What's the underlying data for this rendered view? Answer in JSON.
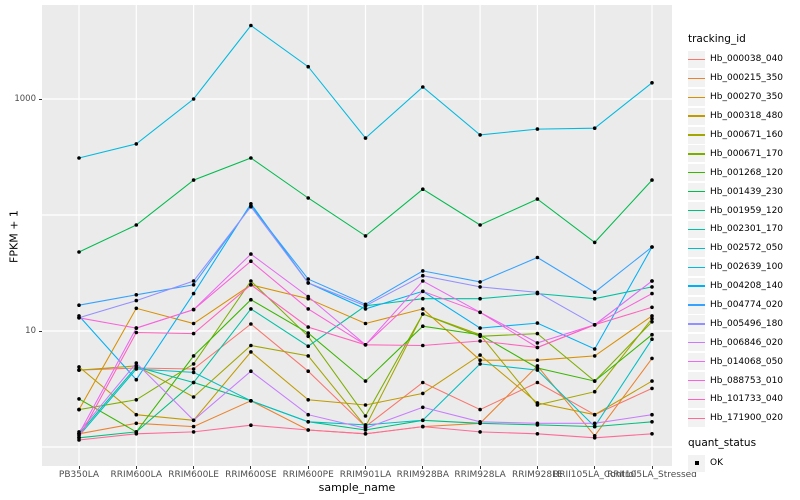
{
  "figure": {
    "background": "#FFFFFF"
  },
  "chart_data": {
    "type": "line",
    "title": "",
    "xlabel": "sample_name",
    "ylabel": "FPKM + 1",
    "y_scale": "log10",
    "ylim": [
      0.85,
      6000
    ],
    "legend_position": "right",
    "panel_background": "#EBEBEB",
    "gridline_color": "#FFFFFF",
    "tick_label_color": "#4D4D4D",
    "point_color": "#000000",
    "y_ticks": [
      {
        "value": 1000,
        "label": "1000"
      },
      {
        "value": 10,
        "label": "10"
      }
    ],
    "y_gridlines": [
      1,
      10,
      100,
      1000
    ],
    "categories": [
      "PB350LA",
      "RRIM600LA",
      "RRIM600LE",
      "RRIM600SE",
      "RRIM600PE",
      "RRIM901LA",
      "RRIM928BA",
      "RRIM928LA",
      "RRIM928LE",
      "RRII105LA_Control",
      "RRII105LA_Stressed"
    ],
    "legend_title": "tracking_id",
    "point_legend": {
      "title": "quant_status",
      "label": "OK"
    },
    "series": [
      {
        "name": "Hb_000038_040",
        "color": "#F8766D",
        "values": [
          4.6,
          4.8,
          4.7,
          11.5,
          4.5,
          1.5,
          3.6,
          2.1,
          3.6,
          1.9,
          3.2
        ]
      },
      {
        "name": "Hb_000215_350",
        "color": "#EA8331",
        "values": [
          1.3,
          1.6,
          1.5,
          2.5,
          1.4,
          1.3,
          1.5,
          1.6,
          5.0,
          1.25,
          5.8
        ]
      },
      {
        "name": "Hb_000270_350",
        "color": "#D89000",
        "values": [
          2.1,
          15.7,
          11.6,
          25,
          19,
          11.6,
          15.5,
          5.6,
          5.6,
          6.1,
          13.5
        ]
      },
      {
        "name": "Hb_000318_480",
        "color": "#C09B00",
        "values": [
          4.9,
          1.9,
          1.7,
          6.6,
          2.55,
          2.3,
          2.9,
          6.2,
          2.4,
          1.9,
          3.7
        ]
      },
      {
        "name": "Hb_000671_160",
        "color": "#A3A500",
        "values": [
          4.6,
          5.0,
          2.7,
          7.5,
          6.1,
          1.5,
          14,
          9.3,
          2.3,
          3.0,
          12.8
        ]
      },
      {
        "name": "Hb_000671_170",
        "color": "#7CAE00",
        "values": [
          2.1,
          2.55,
          5.2,
          27,
          9.0,
          1.85,
          14,
          9.0,
          9.5,
          3.7,
          12.0
        ]
      },
      {
        "name": "Hb_001268_120",
        "color": "#39B600",
        "values": [
          2.6,
          1.35,
          6.1,
          18.6,
          9.6,
          3.7,
          11,
          9.3,
          4.8,
          3.7,
          9.3
        ]
      },
      {
        "name": "Hb_001439_230",
        "color": "#00BB4E",
        "values": [
          48,
          82,
          200,
          310,
          140,
          66,
          167,
          82,
          137,
          58,
          200
        ]
      },
      {
        "name": "Hb_001959_120",
        "color": "#00BF7D",
        "values": [
          1.2,
          1.35,
          3.6,
          2.5,
          1.65,
          1.4,
          1.7,
          1.6,
          1.55,
          1.5,
          1.65
        ]
      },
      {
        "name": "Hb_002301_170",
        "color": "#00C1A3",
        "values": [
          1.3,
          4.9,
          3.6,
          15.5,
          7.4,
          16.5,
          19,
          19,
          21,
          19,
          24
        ]
      },
      {
        "name": "Hb_002572_050",
        "color": "#00BFC4",
        "values": [
          1.25,
          4.7,
          4.4,
          2.5,
          1.65,
          1.55,
          1.7,
          5.2,
          4.6,
          1.5,
          8.5
        ]
      },
      {
        "name": "Hb_002639_100",
        "color": "#00BAE0",
        "values": [
          310,
          410,
          1000,
          4300,
          1900,
          460,
          1270,
          490,
          550,
          560,
          1380
        ]
      },
      {
        "name": "Hb_004208_140",
        "color": "#00B0F6",
        "values": [
          13.5,
          3.8,
          21,
          125,
          26,
          15.5,
          22,
          10.6,
          11.7,
          7.0,
          53
        ]
      },
      {
        "name": "Hb_004774_020",
        "color": "#35A2FF",
        "values": [
          16.7,
          20.5,
          25,
          120,
          28,
          17,
          33,
          26.5,
          43,
          21.6,
          53
        ]
      },
      {
        "name": "Hb_005496_180",
        "color": "#9590FF",
        "values": [
          13,
          18.3,
          27,
          118,
          26,
          16.5,
          30,
          24,
          21.5,
          11.3,
          27
        ]
      },
      {
        "name": "Hb_006846_020",
        "color": "#C77CFF",
        "values": [
          1.35,
          5.3,
          1.7,
          4.5,
          1.9,
          1.45,
          2.2,
          1.65,
          1.6,
          1.6,
          1.9
        ]
      },
      {
        "name": "Hb_014068_050",
        "color": "#E76BF3",
        "values": [
          1.3,
          10.6,
          15.3,
          46,
          19.8,
          7.6,
          27,
          14.5,
          7.9,
          11.3,
          27
        ]
      },
      {
        "name": "Hb_088753_010",
        "color": "#FA62DB",
        "values": [
          13,
          10.6,
          15.3,
          40,
          15.5,
          7.6,
          22,
          14.5,
          7.2,
          11.3,
          21
        ]
      },
      {
        "name": "Hb_101733_040",
        "color": "#FF62BC",
        "values": [
          1.2,
          9.7,
          9.5,
          25,
          10.8,
          7.6,
          7.5,
          8.2,
          7.2,
          11.3,
          16
        ]
      },
      {
        "name": "Hb_171900_020",
        "color": "#FF6A98",
        "values": [
          1.15,
          1.3,
          1.35,
          1.54,
          1.4,
          1.3,
          1.5,
          1.35,
          1.3,
          1.2,
          1.3
        ]
      }
    ]
  }
}
